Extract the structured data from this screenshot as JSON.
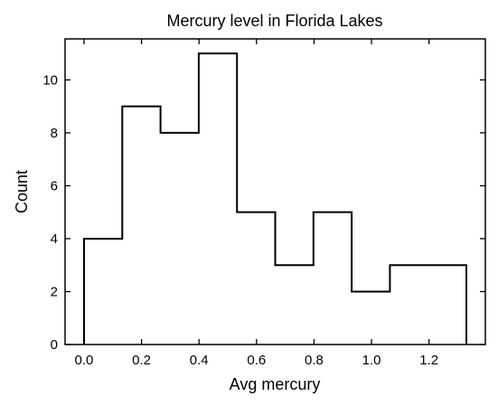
{
  "chart_data": {
    "type": "histogram",
    "title": "Mercury level in Florida Lakes",
    "xlabel": "Avg mercury",
    "ylabel": "Count",
    "bin_edges": [
      0.0,
      0.133,
      0.266,
      0.399,
      0.532,
      0.665,
      0.798,
      0.931,
      1.064,
      1.197,
      1.33
    ],
    "counts": [
      4,
      9,
      8,
      11,
      5,
      3,
      5,
      2,
      3,
      3
    ],
    "xlim": [
      -0.066,
      1.396
    ],
    "ylim": [
      0,
      11.55
    ],
    "xticks": [
      0.0,
      0.2,
      0.4,
      0.6,
      0.8,
      1.0,
      1.2
    ],
    "xtick_labels": [
      "0.0",
      "0.2",
      "0.4",
      "0.6",
      "0.8",
      "1.0",
      "1.2"
    ],
    "yticks": [
      0,
      2,
      4,
      6,
      8,
      10
    ],
    "ytick_labels": [
      "0",
      "2",
      "4",
      "6",
      "8",
      "10"
    ],
    "grid": false,
    "legend": false,
    "style": "step-outline",
    "colors": {
      "line": "#000000",
      "background": "#ffffff"
    }
  }
}
